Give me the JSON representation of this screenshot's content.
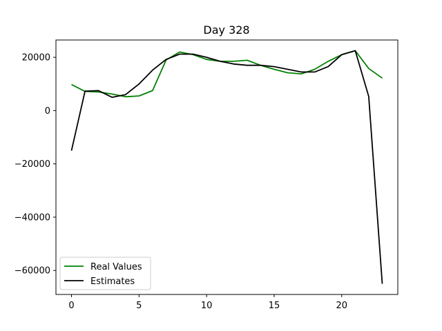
{
  "chart_data": {
    "type": "line",
    "title": "Day 328",
    "xlabel": "",
    "ylabel": "",
    "xlim": [
      -1.15,
      24.15
    ],
    "ylim": [
      -69000,
      26500
    ],
    "xticks": [
      0,
      5,
      10,
      15,
      20
    ],
    "yticks": [
      -60000,
      -40000,
      -20000,
      0,
      20000
    ],
    "ytick_labels": [
      "−60000",
      "−40000",
      "−20000",
      "0",
      "20000"
    ],
    "xtick_labels": [
      "0",
      "5",
      "10",
      "15",
      "20"
    ],
    "grid": false,
    "legend_position": "lower-left",
    "x": [
      0,
      1,
      2,
      3,
      4,
      5,
      6,
      7,
      8,
      9,
      10,
      11,
      12,
      13,
      14,
      15,
      16,
      17,
      18,
      19,
      20,
      21,
      22,
      23
    ],
    "series": [
      {
        "name": "Real Values",
        "color": "#008000",
        "values": [
          9800,
          7200,
          7000,
          6200,
          5200,
          5500,
          7500,
          19000,
          22000,
          21000,
          19200,
          18500,
          18500,
          18900,
          17000,
          15500,
          14200,
          13800,
          15500,
          18500,
          21000,
          22500,
          15800,
          12200
        ]
      },
      {
        "name": "Estimates",
        "color": "#000000",
        "values": [
          -15000,
          7300,
          7500,
          5000,
          6000,
          10000,
          15200,
          19200,
          21200,
          21200,
          20000,
          18500,
          17500,
          17000,
          17000,
          16500,
          15500,
          14500,
          14500,
          16500,
          21000,
          22500,
          5300,
          -65000
        ]
      }
    ]
  }
}
